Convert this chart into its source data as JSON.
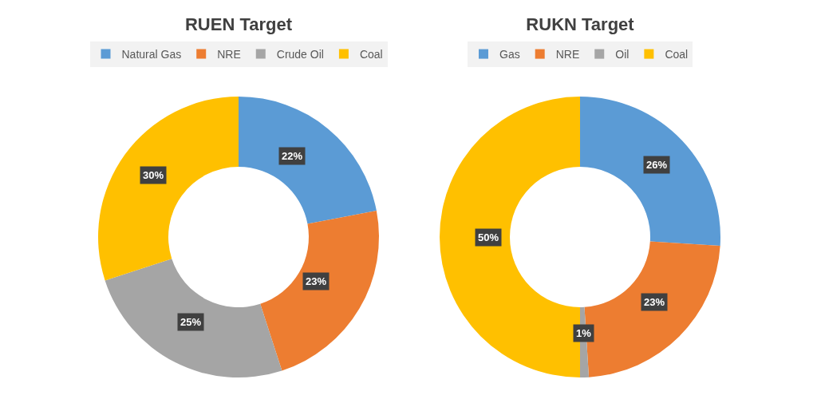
{
  "chart_data": [
    {
      "type": "donut",
      "title": "RUEN Target",
      "categories": [
        "Natural Gas",
        "NRE",
        "Crude Oil",
        "Coal"
      ],
      "values": [
        22,
        23,
        25,
        30
      ],
      "colors": [
        "#5b9bd5",
        "#ed7d31",
        "#a5a5a5",
        "#ffc000"
      ],
      "value_labels": [
        "22%",
        "23%",
        "25%",
        "30%"
      ],
      "legend": "top"
    },
    {
      "type": "donut",
      "title": "RUKN Target",
      "categories": [
        "Gas",
        "NRE",
        "Oil",
        "Coal"
      ],
      "values": [
        26,
        23,
        1,
        50
      ],
      "colors": [
        "#5b9bd5",
        "#ed7d31",
        "#a5a5a5",
        "#ffc000"
      ],
      "value_labels": [
        "26%",
        "23%",
        "1%",
        "50%"
      ],
      "legend": "top"
    }
  ]
}
